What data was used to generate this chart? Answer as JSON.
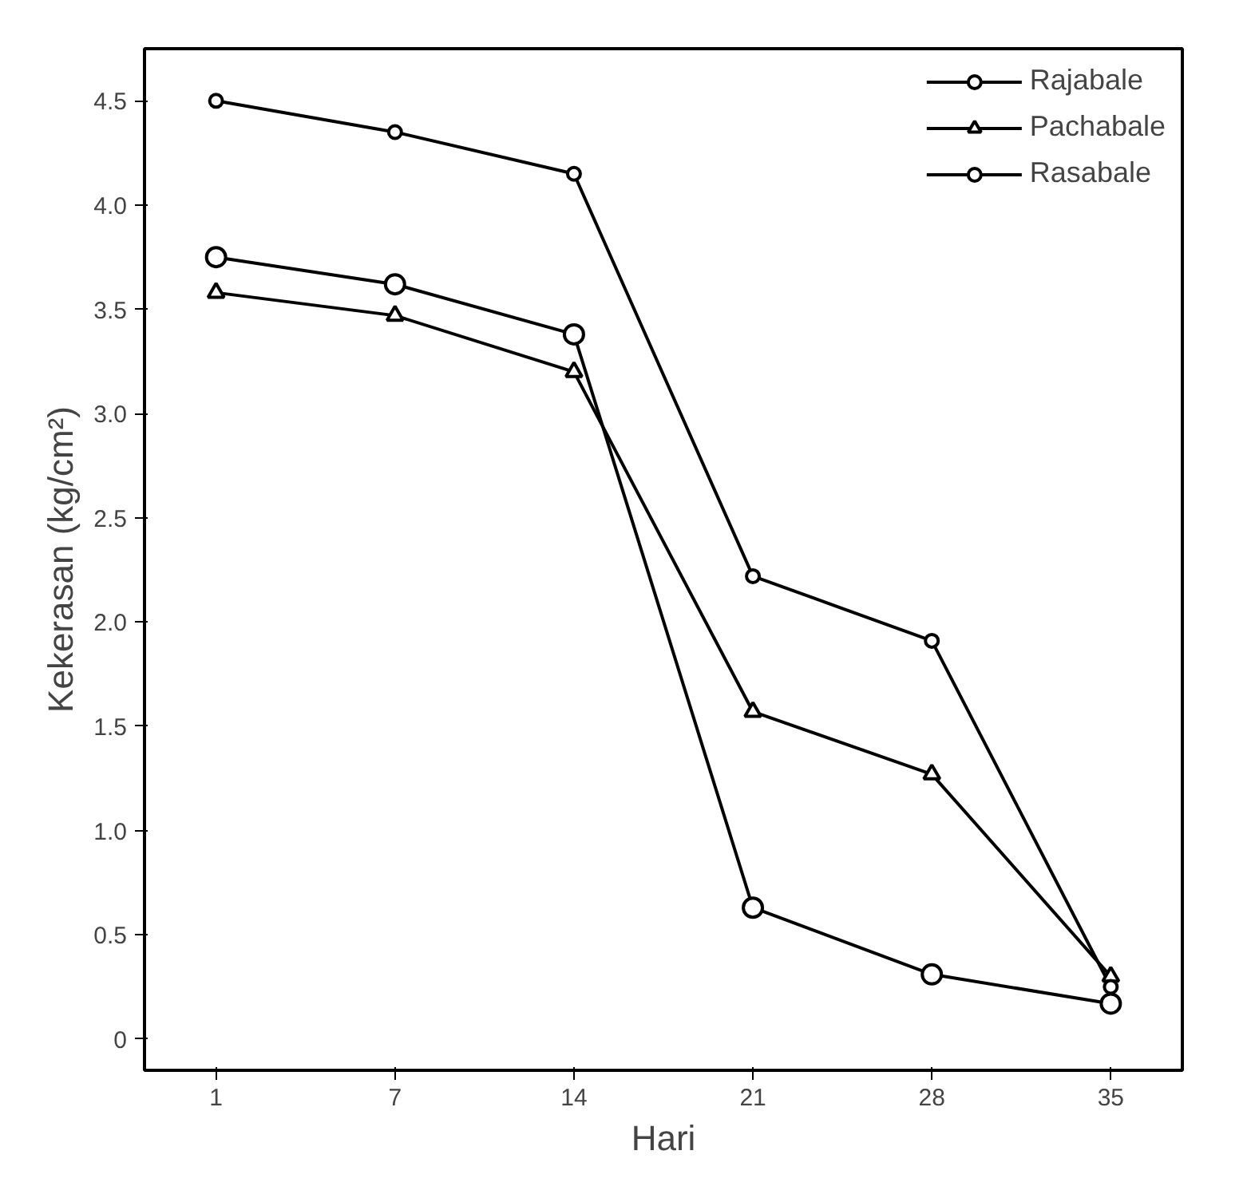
{
  "chart_data": {
    "type": "line",
    "xlabel": "Hari",
    "ylabel": "Kekerasan (kg/cm²)",
    "categories": [
      "1",
      "7",
      "14",
      "21",
      "28",
      "35"
    ],
    "ylim": [
      -0.15,
      4.75
    ],
    "yticks": [
      0,
      0.5,
      {
        "value": 1,
        "label": "1.0"
      },
      1.5,
      {
        "value": 2,
        "label": "2.0"
      },
      2.5,
      {
        "value": 3,
        "label": "3.0"
      },
      3.5,
      {
        "value": 4,
        "label": "4.0"
      },
      4.5
    ],
    "grid": false,
    "legend": "top right",
    "line_style": "solid",
    "series": [
      {
        "name": "Rajabale",
        "color": "#000000",
        "marker": "circle",
        "values": [
          4.5,
          4.35,
          4.15,
          2.22,
          1.91,
          0.25
        ]
      },
      {
        "name": "Pachabale",
        "color": "#000000",
        "marker": "triangle",
        "values": [
          3.58,
          3.47,
          3.2,
          1.57,
          1.27,
          0.3
        ]
      },
      {
        "name": "Rasabale",
        "color": "#000000",
        "marker": "circle",
        "values": [
          3.75,
          3.62,
          3.38,
          0.63,
          0.31,
          0.17
        ]
      }
    ]
  }
}
